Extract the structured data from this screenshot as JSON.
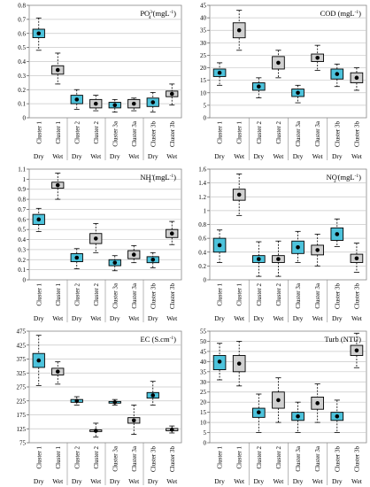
{
  "colors": {
    "dry": "#4dc3dc",
    "wet": "#d0d0d0",
    "grid": "#c8c8c8",
    "axis": "#000000"
  },
  "chart_data": [
    {
      "type": "boxplot",
      "title_main": "PO",
      "title_sup": "3-",
      "title_sub": "4",
      "title_unit": " (mgL",
      "title_unit_sup": "-1",
      "title_tail": ")",
      "ylim": [
        0,
        0.8
      ],
      "yticks": [
        "0",
        "0.1",
        "0.2",
        "0.3",
        "0.4",
        "0.5",
        "0.6",
        "0.7",
        "0.8"
      ],
      "categories": [
        "Cluster 1",
        "Cluster 1",
        "Cluster 2",
        "Cluster 2",
        "Cluster 3a",
        "Cluster 3a",
        "Cluster 3b",
        "Cluster 3b"
      ],
      "seasons": [
        "Dry",
        "Wet"
      ],
      "boxes": [
        {
          "season": "Dry",
          "mean": 0.6,
          "q1": 0.57,
          "q3": 0.63,
          "whisker_low": 0.48,
          "whisker_high": 0.71
        },
        {
          "season": "Wet",
          "mean": 0.34,
          "q1": 0.31,
          "q3": 0.37,
          "whisker_low": 0.24,
          "whisker_high": 0.46
        },
        {
          "season": "Dry",
          "mean": 0.13,
          "q1": 0.1,
          "q3": 0.16,
          "whisker_low": 0.06,
          "whisker_high": 0.2
        },
        {
          "season": "Wet",
          "mean": 0.1,
          "q1": 0.07,
          "q3": 0.13,
          "whisker_low": 0.05,
          "whisker_high": 0.16
        },
        {
          "season": "Dry",
          "mean": 0.09,
          "q1": 0.07,
          "q3": 0.11,
          "whisker_low": 0.04,
          "whisker_high": 0.13
        },
        {
          "season": "Wet",
          "mean": 0.1,
          "q1": 0.07,
          "q3": 0.13,
          "whisker_low": 0.05,
          "whisker_high": 0.14
        },
        {
          "season": "Dry",
          "mean": 0.11,
          "q1": 0.08,
          "q3": 0.14,
          "whisker_low": 0.04,
          "whisker_high": 0.18
        },
        {
          "season": "Wet",
          "mean": 0.17,
          "q1": 0.15,
          "q3": 0.19,
          "whisker_low": 0.09,
          "whisker_high": 0.24
        }
      ]
    },
    {
      "type": "boxplot",
      "title_main": "COD",
      "title_sup": "",
      "title_sub": "",
      "title_unit": " (mgL",
      "title_unit_sup": "-1",
      "title_tail": ")",
      "ylim": [
        0,
        45
      ],
      "yticks": [
        "0",
        "5",
        "10",
        "15",
        "20",
        "25",
        "30",
        "35",
        "40",
        "45"
      ],
      "categories": [
        "Cluster 1",
        "Cluster 1",
        "Cluster 2",
        "Cluster 2",
        "Cluster 3a",
        "Cluster 3a",
        "Cluster 3b",
        "Cluster 3b"
      ],
      "seasons": [
        "Dry",
        "Wet"
      ],
      "boxes": [
        {
          "season": "Dry",
          "mean": 18,
          "q1": 16.5,
          "q3": 19.5,
          "whisker_low": 13,
          "whisker_high": 22
        },
        {
          "season": "Wet",
          "mean": 35,
          "q1": 32,
          "q3": 38,
          "whisker_low": 27,
          "whisker_high": 43
        },
        {
          "season": "Dry",
          "mean": 12.5,
          "q1": 11,
          "q3": 14,
          "whisker_low": 8,
          "whisker_high": 16
        },
        {
          "season": "Wet",
          "mean": 22,
          "q1": 19.5,
          "q3": 24.5,
          "whisker_low": 16,
          "whisker_high": 27
        },
        {
          "season": "Dry",
          "mean": 10,
          "q1": 8.5,
          "q3": 11.5,
          "whisker_low": 6,
          "whisker_high": 13
        },
        {
          "season": "Wet",
          "mean": 24,
          "q1": 22.5,
          "q3": 25.5,
          "whisker_low": 19,
          "whisker_high": 29
        },
        {
          "season": "Dry",
          "mean": 17.5,
          "q1": 15.5,
          "q3": 19.5,
          "whisker_low": 12.5,
          "whisker_high": 21.5
        },
        {
          "season": "Wet",
          "mean": 16,
          "q1": 14,
          "q3": 18,
          "whisker_low": 11,
          "whisker_high": 20
        }
      ]
    },
    {
      "type": "boxplot",
      "title_main": "NH",
      "title_sup": "+",
      "title_sub": "4",
      "title_unit": " (mgL",
      "title_unit_sup": "-1",
      "title_tail": ")",
      "ylim": [
        0,
        1.1
      ],
      "yticks": [
        "0",
        "0.1",
        "0.2",
        "0.3",
        "0.4",
        "0.5",
        "0.6",
        "0.7",
        "0.8",
        "0.9",
        "1",
        "1.1"
      ],
      "categories": [
        "Cluster 1",
        "Cluster 1",
        "Cluster 2",
        "Cluster 2",
        "Cluster 3a",
        "Cluster 3a",
        "Cluster 3b",
        "Cluster 3b"
      ],
      "seasons": [
        "Dry",
        "Wet"
      ],
      "boxes": [
        {
          "season": "Dry",
          "mean": 0.6,
          "q1": 0.55,
          "q3": 0.65,
          "whisker_low": 0.48,
          "whisker_high": 0.71
        },
        {
          "season": "Wet",
          "mean": 0.94,
          "q1": 0.91,
          "q3": 0.97,
          "whisker_low": 0.8,
          "whisker_high": 1.06
        },
        {
          "season": "Dry",
          "mean": 0.22,
          "q1": 0.18,
          "q3": 0.26,
          "whisker_low": 0.11,
          "whisker_high": 0.31
        },
        {
          "season": "Wet",
          "mean": 0.41,
          "q1": 0.36,
          "q3": 0.46,
          "whisker_low": 0.27,
          "whisker_high": 0.56
        },
        {
          "season": "Dry",
          "mean": 0.17,
          "q1": 0.14,
          "q3": 0.2,
          "whisker_low": 0.09,
          "whisker_high": 0.24
        },
        {
          "season": "Wet",
          "mean": 0.25,
          "q1": 0.21,
          "q3": 0.29,
          "whisker_low": 0.17,
          "whisker_high": 0.34
        },
        {
          "season": "Dry",
          "mean": 0.2,
          "q1": 0.17,
          "q3": 0.23,
          "whisker_low": 0.12,
          "whisker_high": 0.27
        },
        {
          "season": "Wet",
          "mean": 0.46,
          "q1": 0.42,
          "q3": 0.5,
          "whisker_low": 0.35,
          "whisker_high": 0.58
        }
      ]
    },
    {
      "type": "boxplot",
      "title_main": "NO",
      "title_sup": "-",
      "title_sub": "3",
      "title_unit": " (mgL",
      "title_unit_sup": "-1",
      "title_tail": ")",
      "ylim": [
        0,
        1.6
      ],
      "yticks": [
        "0",
        "0.2",
        "0.4",
        "0.6",
        "0.8",
        "1",
        "1.2",
        "1.4",
        "1.6"
      ],
      "categories": [
        "Cluster 1",
        "Cluster 1",
        "Cluster 2",
        "Cluster 2",
        "Cluster 3a",
        "Cluster 3a",
        "Cluster 3b",
        "Cluster 3b"
      ],
      "seasons": [
        "Dry",
        "Wet"
      ],
      "boxes": [
        {
          "season": "Dry",
          "mean": 0.5,
          "q1": 0.4,
          "q3": 0.6,
          "whisker_low": 0.25,
          "whisker_high": 0.72
        },
        {
          "season": "Wet",
          "mean": 1.23,
          "q1": 1.15,
          "q3": 1.31,
          "whisker_low": 0.93,
          "whisker_high": 1.53
        },
        {
          "season": "Dry",
          "mean": 0.3,
          "q1": 0.25,
          "q3": 0.35,
          "whisker_low": 0.05,
          "whisker_high": 0.55
        },
        {
          "season": "Wet",
          "mean": 0.3,
          "q1": 0.25,
          "q3": 0.35,
          "whisker_low": 0.05,
          "whisker_high": 0.56
        },
        {
          "season": "Dry",
          "mean": 0.47,
          "q1": 0.38,
          "q3": 0.56,
          "whisker_low": 0.25,
          "whisker_high": 0.7
        },
        {
          "season": "Wet",
          "mean": 0.43,
          "q1": 0.36,
          "q3": 0.5,
          "whisker_low": 0.2,
          "whisker_high": 0.66
        },
        {
          "season": "Dry",
          "mean": 0.66,
          "q1": 0.57,
          "q3": 0.75,
          "whisker_low": 0.48,
          "whisker_high": 0.88
        },
        {
          "season": "Wet",
          "mean": 0.31,
          "q1": 0.25,
          "q3": 0.37,
          "whisker_low": 0.11,
          "whisker_high": 0.53
        }
      ]
    },
    {
      "type": "boxplot",
      "title_main": "EC (S.cm",
      "title_sup": "-1",
      "title_sub": "",
      "title_unit": "",
      "title_unit_sup": "",
      "title_tail": ")",
      "ylim": [
        75,
        475
      ],
      "yticks": [
        "75",
        "125",
        "175",
        "225",
        "275",
        "325",
        "375",
        "425",
        "475"
      ],
      "categories": [
        "Cluster 1",
        "Cluster 1",
        "Cluster 2",
        "Cluster 2",
        "Cluster 3a",
        "Cluster 3a",
        "Cluster 3b",
        "Cluster 3b"
      ],
      "seasons": [
        "Dry",
        "Wet"
      ],
      "boxes": [
        {
          "season": "Dry",
          "mean": 370,
          "q1": 345,
          "q3": 395,
          "whisker_low": 280,
          "whisker_high": 460
        },
        {
          "season": "Wet",
          "mean": 330,
          "q1": 318,
          "q3": 342,
          "whisker_low": 285,
          "whisker_high": 365
        },
        {
          "season": "Dry",
          "mean": 225,
          "q1": 220,
          "q3": 230,
          "whisker_low": 210,
          "whisker_high": 240
        },
        {
          "season": "Wet",
          "mean": 118,
          "q1": 115,
          "q3": 121,
          "whisker_low": 95,
          "whisker_high": 145
        },
        {
          "season": "Dry",
          "mean": 220,
          "q1": 217,
          "q3": 223,
          "whisker_low": 210,
          "whisker_high": 230
        },
        {
          "season": "Wet",
          "mean": 155,
          "q1": 145,
          "q3": 165,
          "whisker_low": 105,
          "whisker_high": 210
        },
        {
          "season": "Dry",
          "mean": 245,
          "q1": 235,
          "q3": 255,
          "whisker_low": 210,
          "whisker_high": 295
        },
        {
          "season": "Wet",
          "mean": 122,
          "q1": 118,
          "q3": 126,
          "whisker_low": 110,
          "whisker_high": 135
        }
      ]
    },
    {
      "type": "boxplot",
      "title_main": "Turb (NTU)",
      "title_sup": "",
      "title_sub": "",
      "title_unit": "",
      "title_unit_sup": "",
      "title_tail": "",
      "ylim": [
        0,
        55
      ],
      "yticks": [
        "0",
        "5",
        "10",
        "15",
        "20",
        "25",
        "30",
        "35",
        "40",
        "45",
        "50",
        "55"
      ],
      "categories": [
        "Cluster 1",
        "Cluster 1",
        "Cluster 2",
        "Cluster 2",
        "Cluster 3a",
        "Cluster 3a",
        "Cluster 3b",
        "Cluster 3b"
      ],
      "seasons": [
        "Dry",
        "Wet"
      ],
      "boxes": [
        {
          "season": "Dry",
          "mean": 40,
          "q1": 36,
          "q3": 43,
          "whisker_low": 31,
          "whisker_high": 49
        },
        {
          "season": "Wet",
          "mean": 39,
          "q1": 35,
          "q3": 43,
          "whisker_low": 28,
          "whisker_high": 50
        },
        {
          "season": "Dry",
          "mean": 15,
          "q1": 12.5,
          "q3": 17,
          "whisker_low": 5,
          "whisker_high": 24
        },
        {
          "season": "Wet",
          "mean": 21,
          "q1": 17,
          "q3": 25,
          "whisker_low": 10,
          "whisker_high": 32
        },
        {
          "season": "Dry",
          "mean": 13,
          "q1": 11,
          "q3": 15,
          "whisker_low": 5,
          "whisker_high": 20
        },
        {
          "season": "Wet",
          "mean": 19.5,
          "q1": 16.5,
          "q3": 22.5,
          "whisker_low": 10,
          "whisker_high": 29
        },
        {
          "season": "Dry",
          "mean": 13,
          "q1": 11,
          "q3": 15,
          "whisker_low": 5,
          "whisker_high": 21
        },
        {
          "season": "Wet",
          "mean": 45.5,
          "q1": 43,
          "q3": 48,
          "whisker_low": 37,
          "whisker_high": 54
        }
      ]
    }
  ]
}
